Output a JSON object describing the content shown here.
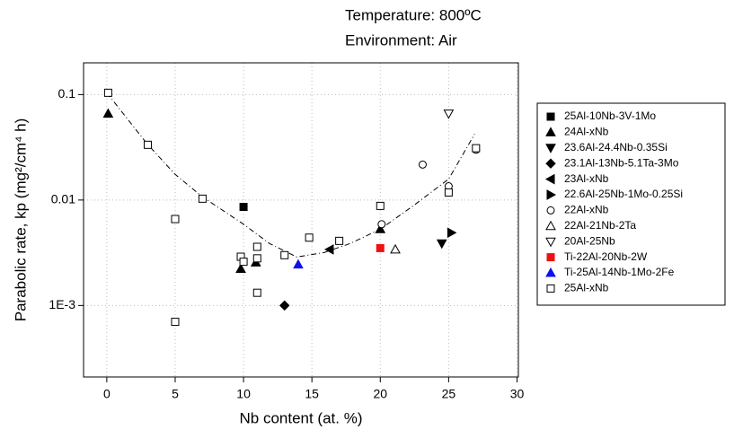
{
  "chart_data": {
    "type": "scatter",
    "title": [
      "Temperature: 800ºC",
      "Environment: Air"
    ],
    "x_label": "Nb content (at. %)",
    "y_label": "Parabolic rate, kp (mg²/cm⁴ h)",
    "xlim": [
      -1.7,
      30.1
    ],
    "xticks": [
      0,
      5,
      10,
      15,
      20,
      25,
      30
    ],
    "ylim": [
      0.00021,
      0.2
    ],
    "log_y": true,
    "yticks": [
      0.1,
      0.01,
      {
        "value": 0.001,
        "label": "1E-3"
      }
    ],
    "grid": true,
    "legend": "outside-right",
    "series": [
      {
        "name": "25Al-10Nb-3V-1Mo",
        "marker": "square",
        "filled": true,
        "color": "#000000",
        "x": [
          10
        ],
        "values": [
          0.0086
        ]
      },
      {
        "name": "24Al-xNb",
        "marker": "triangle-up",
        "filled": true,
        "color": "#000000",
        "x": [
          0.1,
          9.8,
          10.9,
          20
        ],
        "values": [
          0.066,
          0.00223,
          0.00256,
          0.0053
        ]
      },
      {
        "name": "23.6Al-24.4Nb-0.35Si",
        "marker": "triangle-down",
        "filled": true,
        "color": "#000000",
        "x": [
          24.5
        ],
        "values": [
          0.00387
        ]
      },
      {
        "name": "23.1Al-13Nb-5.1Ta-3Mo",
        "marker": "diamond",
        "filled": true,
        "color": "#000000",
        "x": [
          13
        ],
        "values": [
          0.001
        ]
      },
      {
        "name": "23Al-xNb",
        "marker": "triangle-left",
        "filled": true,
        "color": "#000000",
        "x": [
          16.3
        ],
        "values": [
          0.0034
        ]
      },
      {
        "name": "22.6Al-25Nb-1Mo-0.25Si",
        "marker": "triangle-right",
        "filled": true,
        "color": "#000000",
        "x": [
          25.2
        ],
        "values": [
          0.0049
        ]
      },
      {
        "name": "22Al-xNb",
        "marker": "circle",
        "filled": false,
        "color": "#000000",
        "x": [
          23.1,
          20.1,
          25,
          27
        ],
        "values": [
          0.0217,
          0.0059,
          0.0135,
          0.03
        ]
      },
      {
        "name": "22Al-21Nb-2Ta",
        "marker": "triangle-up",
        "filled": false,
        "color": "#000000",
        "x": [
          21.1
        ],
        "values": [
          0.0034
        ]
      },
      {
        "name": "20Al-25Nb",
        "marker": "triangle-down",
        "filled": false,
        "color": "#000000",
        "x": [
          25
        ],
        "values": [
          0.066
        ]
      },
      {
        "name": "Ti-22Al-20Nb-2W",
        "marker": "square",
        "filled": true,
        "color": "#ee1111",
        "x": [
          20
        ],
        "values": [
          0.0035
        ]
      },
      {
        "name": "Ti-25Al-14Nb-1Mo-2Fe",
        "marker": "triangle-up",
        "filled": true,
        "color": "#1010ee",
        "x": [
          14
        ],
        "values": [
          0.00245
        ]
      },
      {
        "name": "25Al-xNb",
        "marker": "square",
        "filled": false,
        "color": "#000000",
        "x": [
          0.1,
          3,
          5,
          5,
          7,
          9.8,
          10,
          11,
          11,
          11,
          13,
          14.8,
          17,
          20,
          25,
          27
        ],
        "values": [
          0.104,
          0.0334,
          0.0066,
          0.0007,
          0.0103,
          0.0029,
          0.0026,
          0.0036,
          0.0028,
          0.00132,
          0.003,
          0.0044,
          0.0041,
          0.0088,
          0.0118,
          0.031
        ]
      }
    ],
    "trend": {
      "x": [
        0,
        2.9,
        5,
        7,
        10,
        11.9,
        13.9,
        15.9,
        17.8,
        20,
        22.4,
        25,
        26.9
      ],
      "values": [
        0.104,
        0.0347,
        0.0175,
        0.0107,
        0.0059,
        0.00387,
        0.00288,
        0.00318,
        0.00387,
        0.00529,
        0.0088,
        0.0158,
        0.0422
      ]
    }
  }
}
